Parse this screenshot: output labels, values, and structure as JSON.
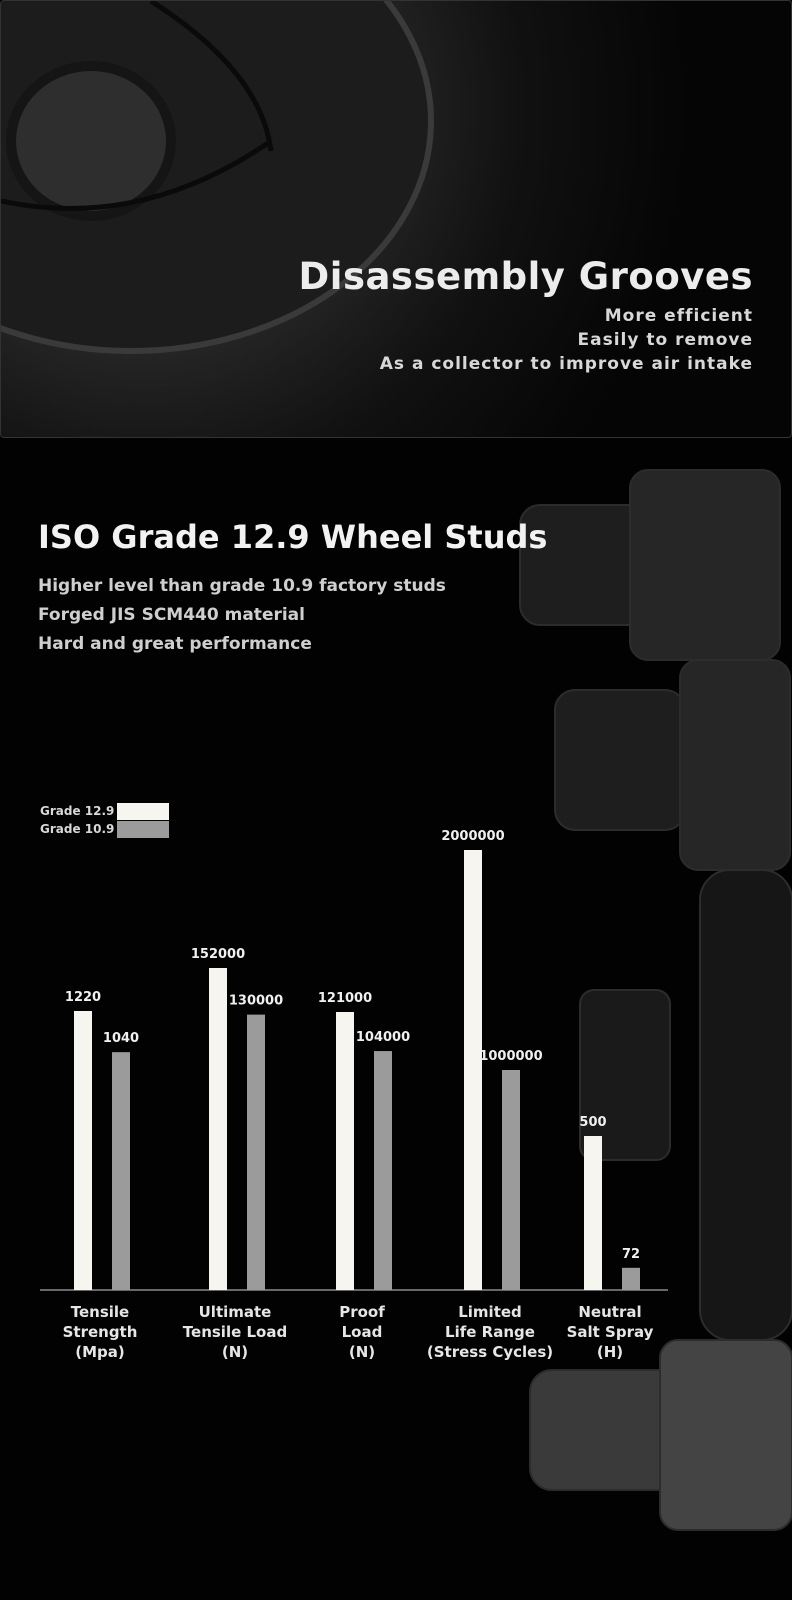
{
  "banner": {
    "title": "Disassembly Grooves",
    "lines": [
      "More efficient",
      "Easily to remove",
      "As a collector to improve air intake"
    ]
  },
  "section": {
    "title": "ISO Grade 12.9 Wheel Studs",
    "lines": [
      "Higher level than grade 10.9 factory studs",
      "Forged JIS SCM440 material",
      "Hard and great performance"
    ]
  },
  "chart_data": {
    "type": "bar",
    "categories": [
      "Tensile\nStrength\n(Mpa)",
      "Ultimate\nTensile Load\n(N)",
      "Proof\nLoad\n(N)",
      "Limited\nLife Range\n(Stress Cycles)",
      "Neutral\nSalt Spray\n(H)"
    ],
    "series": [
      {
        "name": "Grade 12.9",
        "color": "#f7f5ef",
        "values": [
          1220,
          152000,
          121000,
          2000000,
          500
        ]
      },
      {
        "name": "Grade 10.9",
        "color": "#9b9b9b",
        "values": [
          1040,
          130000,
          104000,
          1000000,
          72
        ]
      }
    ]
  }
}
